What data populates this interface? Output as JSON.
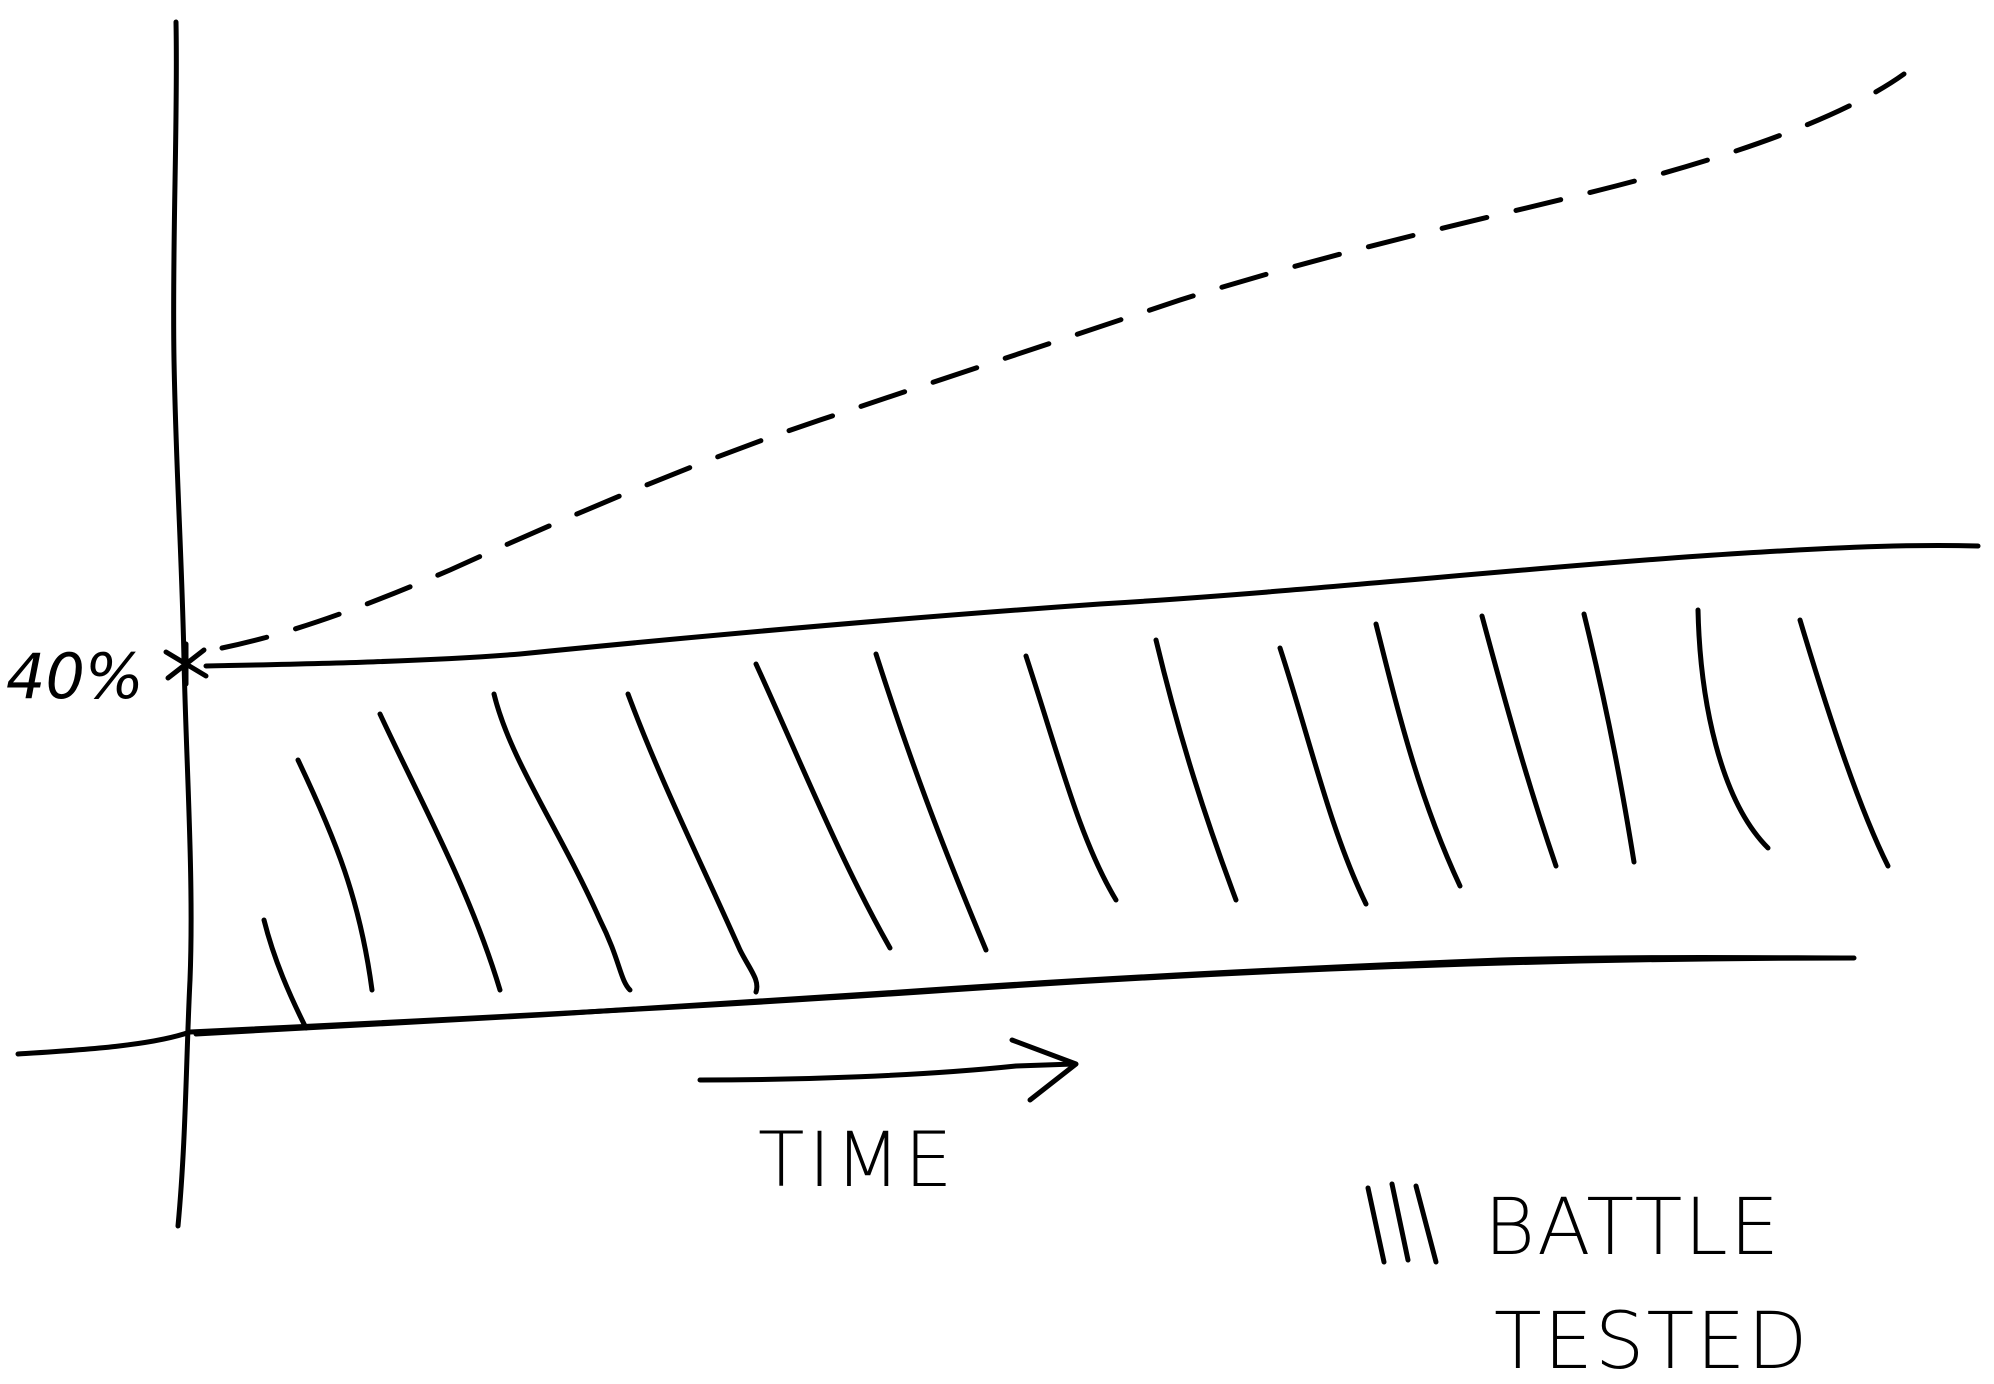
{
  "diagram": {
    "start_label": "40%",
    "x_axis_label": "TIME",
    "legend": {
      "line1": "BATTLE",
      "line2": "TESTED",
      "marker_glyph": "|||"
    },
    "colors": {
      "ink": "#000000",
      "paper": "#ffffff"
    }
  }
}
